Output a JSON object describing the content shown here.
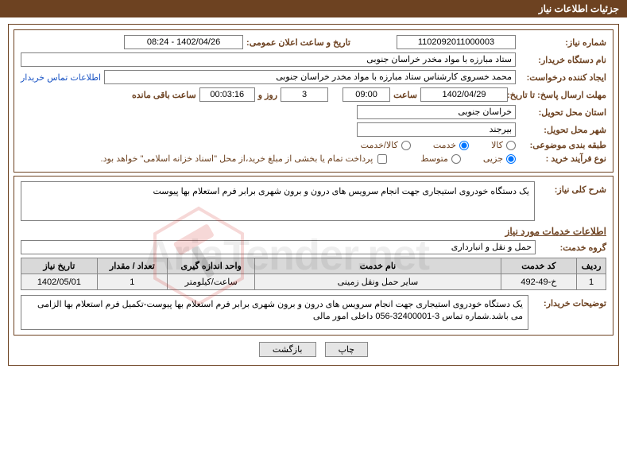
{
  "header": {
    "title": "جزئیات اطلاعات نیاز"
  },
  "fields": {
    "need_number_label": "شماره نیاز:",
    "need_number": "1102092011000003",
    "announce_label": "تاریخ و ساعت اعلان عمومی:",
    "announce_value": "08:24 - 1402/04/26",
    "buyer_org_label": "نام دستگاه خریدار:",
    "buyer_org": "ستاد مبارزه با مواد مخدر خراسان جنوبی",
    "requester_label": "ایجاد کننده درخواست:",
    "requester": "محمد خسروی کارشناس  ستاد مبارزه با مواد مخدر خراسان جنوبی",
    "contact_link": "اطلاعات تماس خریدار",
    "deadline_label": "مهلت ارسال پاسخ: تا تاریخ:",
    "deadline_date": "1402/04/29",
    "time_label": "ساعت",
    "deadline_time": "09:00",
    "days_value": "3",
    "days_label": "روز و",
    "countdown": "00:03:16",
    "remaining_label": "ساعت باقی مانده",
    "province_label": "استان محل تحویل:",
    "province": "خراسان جنوبی",
    "city_label": "شهر محل تحویل:",
    "city": "بیرجند",
    "subject_class_label": "طبقه بندی موضوعی:",
    "radio_goods": "کالا",
    "radio_service": "خدمت",
    "radio_goods_service": "کالا/خدمت",
    "purchase_type_label": "نوع فرآیند خرید :",
    "radio_minor": "جزیی",
    "radio_medium": "متوسط",
    "treasury_note": "پرداخت تمام یا بخشی از مبلغ خرید،از محل \"اسناد خزانه اسلامی\" خواهد بود."
  },
  "need": {
    "summary_label": "شرح کلی نیاز:",
    "summary": "یک دستگاه خودروی استیجاری جهت انجام سرویس های درون و برون شهری برابر فرم استعلام بها پیوست",
    "services_title": "اطلاعات خدمات مورد نیاز",
    "group_label": "گروه خدمت:",
    "group": "حمل و نقل و انبارداری"
  },
  "table": {
    "columns": [
      "ردیف",
      "کد خدمت",
      "نام خدمت",
      "واحد اندازه گیری",
      "تعداد / مقدار",
      "تاریخ نیاز"
    ],
    "col_widths": [
      "5%",
      "13%",
      "42%",
      "15%",
      "12%",
      "13%"
    ],
    "rows": [
      [
        "1",
        "خ-49-492",
        "سایر حمل ونقل زمینی",
        "ساعت/کیلومتر",
        "1",
        "1402/05/01"
      ]
    ]
  },
  "buyer_notes": {
    "label": "توضیحات خریدار:",
    "text": "یک دستگاه خودروی استیجاری جهت انجام سرویس های درون و برون شهری برابر فرم استعلام بها پیوست-تکمیل فرم استعلام بها الزامی می باشد.شماره تماس 3-32400001-056 داخلی امور مالی"
  },
  "buttons": {
    "print": "چاپ",
    "back": "بازگشت"
  },
  "watermark": {
    "text": "AriaTender.net"
  },
  "colors": {
    "primary": "#6d4221",
    "header_bg": "#6d4221",
    "header_text": "#ffffff",
    "link": "#1a54c4",
    "border_input": "#808080",
    "th_bg": "#d9d9d9",
    "td_bg": "#f0f0f0",
    "button_bg": "#e5e5e5",
    "wm_accent": "#d4342e"
  }
}
